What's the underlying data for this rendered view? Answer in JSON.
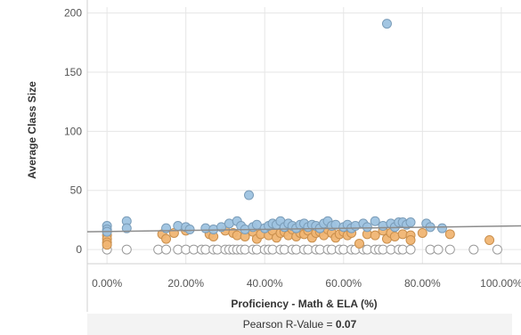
{
  "chart_data": {
    "type": "scatter",
    "xlabel": "Proficiency - Math & ELA (%)",
    "ylabel": "Average Class Size",
    "xlim": [
      -0.05,
      1.05
    ],
    "ylim": [
      -12,
      205
    ],
    "x_ticks": [
      "0.00%",
      "20.00%",
      "40.00%",
      "60.00%",
      "80.00%",
      "100.00%"
    ],
    "x_tick_values": [
      0,
      0.2,
      0.4,
      0.6,
      0.8,
      1.0
    ],
    "y_ticks": [
      "0",
      "50",
      "100",
      "150",
      "200"
    ],
    "y_tick_values": [
      0,
      50,
      100,
      150,
      200
    ],
    "grid": true,
    "trend_line": {
      "x": [
        -0.05,
        1.05
      ],
      "y": [
        15,
        20
      ]
    },
    "series": [
      {
        "color": "#9ec3e0",
        "points": [
          [
            0,
            20
          ],
          [
            0,
            17
          ],
          [
            0,
            15
          ],
          [
            0.05,
            24
          ],
          [
            0.05,
            18
          ],
          [
            0.15,
            18
          ],
          [
            0.18,
            20
          ],
          [
            0.2,
            19
          ],
          [
            0.21,
            17
          ],
          [
            0.25,
            18
          ],
          [
            0.27,
            17
          ],
          [
            0.29,
            19
          ],
          [
            0.31,
            22
          ],
          [
            0.33,
            24
          ],
          [
            0.34,
            20
          ],
          [
            0.35,
            17
          ],
          [
            0.36,
            46
          ],
          [
            0.37,
            19
          ],
          [
            0.38,
            21
          ],
          [
            0.4,
            18
          ],
          [
            0.41,
            20
          ],
          [
            0.42,
            22
          ],
          [
            0.43,
            21
          ],
          [
            0.44,
            24
          ],
          [
            0.45,
            19
          ],
          [
            0.46,
            22
          ],
          [
            0.47,
            20
          ],
          [
            0.48,
            18
          ],
          [
            0.49,
            21
          ],
          [
            0.5,
            22
          ],
          [
            0.51,
            19
          ],
          [
            0.52,
            21
          ],
          [
            0.53,
            20
          ],
          [
            0.54,
            18
          ],
          [
            0.55,
            22
          ],
          [
            0.56,
            24
          ],
          [
            0.57,
            20
          ],
          [
            0.58,
            21
          ],
          [
            0.6,
            19
          ],
          [
            0.61,
            21
          ],
          [
            0.62,
            18
          ],
          [
            0.63,
            20
          ],
          [
            0.65,
            22
          ],
          [
            0.66,
            19
          ],
          [
            0.68,
            24
          ],
          [
            0.7,
            20
          ],
          [
            0.71,
            191
          ],
          [
            0.72,
            22
          ],
          [
            0.73,
            19
          ],
          [
            0.74,
            23
          ],
          [
            0.75,
            23
          ],
          [
            0.76,
            21
          ],
          [
            0.77,
            23
          ],
          [
            0.81,
            22
          ],
          [
            0.82,
            19
          ],
          [
            0.85,
            18
          ]
        ]
      },
      {
        "color": "#f0b573",
        "points": [
          [
            0,
            12
          ],
          [
            0,
            9
          ],
          [
            0,
            6
          ],
          [
            0,
            4
          ],
          [
            0.14,
            13
          ],
          [
            0.15,
            9
          ],
          [
            0.17,
            14
          ],
          [
            0.2,
            16
          ],
          [
            0.26,
            13
          ],
          [
            0.27,
            11
          ],
          [
            0.3,
            16
          ],
          [
            0.32,
            14
          ],
          [
            0.33,
            12
          ],
          [
            0.35,
            11
          ],
          [
            0.37,
            15
          ],
          [
            0.38,
            9
          ],
          [
            0.39,
            13
          ],
          [
            0.41,
            12
          ],
          [
            0.42,
            16
          ],
          [
            0.43,
            10
          ],
          [
            0.44,
            14
          ],
          [
            0.45,
            15
          ],
          [
            0.46,
            12
          ],
          [
            0.47,
            17
          ],
          [
            0.48,
            11
          ],
          [
            0.49,
            14
          ],
          [
            0.5,
            13
          ],
          [
            0.51,
            16
          ],
          [
            0.52,
            10
          ],
          [
            0.53,
            14
          ],
          [
            0.54,
            15
          ],
          [
            0.55,
            12
          ],
          [
            0.56,
            17
          ],
          [
            0.57,
            14
          ],
          [
            0.58,
            10
          ],
          [
            0.59,
            13
          ],
          [
            0.6,
            15
          ],
          [
            0.61,
            12
          ],
          [
            0.62,
            14
          ],
          [
            0.64,
            5
          ],
          [
            0.66,
            13
          ],
          [
            0.68,
            12
          ],
          [
            0.7,
            16
          ],
          [
            0.71,
            9
          ],
          [
            0.72,
            14
          ],
          [
            0.73,
            11
          ],
          [
            0.75,
            13
          ],
          [
            0.77,
            12
          ],
          [
            0.77,
            8
          ],
          [
            0.8,
            14
          ],
          [
            0.87,
            13
          ],
          [
            0.97,
            8
          ]
        ]
      },
      {
        "color": "#ffffff",
        "points": [
          [
            0,
            0
          ],
          [
            0.05,
            0
          ],
          [
            0.13,
            0
          ],
          [
            0.15,
            0
          ],
          [
            0.18,
            0
          ],
          [
            0.2,
            0
          ],
          [
            0.22,
            0
          ],
          [
            0.24,
            0
          ],
          [
            0.25,
            0
          ],
          [
            0.27,
            0
          ],
          [
            0.28,
            0
          ],
          [
            0.3,
            0
          ],
          [
            0.31,
            0
          ],
          [
            0.32,
            0
          ],
          [
            0.33,
            0
          ],
          [
            0.34,
            0
          ],
          [
            0.35,
            0
          ],
          [
            0.37,
            0
          ],
          [
            0.38,
            0
          ],
          [
            0.4,
            0
          ],
          [
            0.41,
            0
          ],
          [
            0.42,
            0
          ],
          [
            0.44,
            0
          ],
          [
            0.45,
            0
          ],
          [
            0.47,
            0
          ],
          [
            0.48,
            0
          ],
          [
            0.5,
            0
          ],
          [
            0.51,
            0
          ],
          [
            0.53,
            0
          ],
          [
            0.54,
            0
          ],
          [
            0.56,
            0
          ],
          [
            0.57,
            0
          ],
          [
            0.59,
            0
          ],
          [
            0.6,
            0
          ],
          [
            0.62,
            0
          ],
          [
            0.63,
            0
          ],
          [
            0.65,
            0
          ],
          [
            0.66,
            0
          ],
          [
            0.68,
            0
          ],
          [
            0.69,
            0
          ],
          [
            0.7,
            0
          ],
          [
            0.72,
            0
          ],
          [
            0.74,
            0
          ],
          [
            0.75,
            0
          ],
          [
            0.77,
            0
          ],
          [
            0.82,
            0
          ],
          [
            0.84,
            0
          ],
          [
            0.87,
            0
          ],
          [
            0.93,
            0
          ],
          [
            0.99,
            0
          ]
        ]
      }
    ]
  },
  "footer": {
    "label": "Pearson R-Value = ",
    "value": "0.07"
  }
}
